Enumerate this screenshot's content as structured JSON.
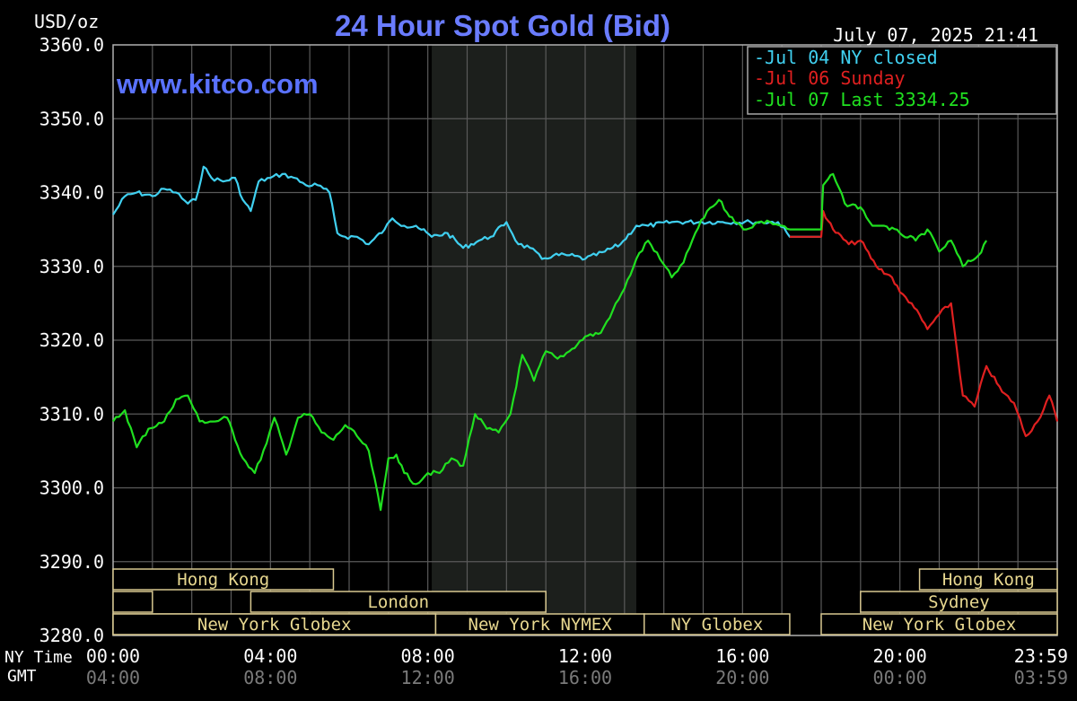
{
  "chart_data": {
    "type": "line",
    "title": "24 Hour Spot Gold (Bid)",
    "unit_label": "USD/oz",
    "website": "www.kitco.com",
    "timestamp": "July 07, 2025 21:41",
    "ylim": [
      3280,
      3360
    ],
    "y_ticks": [
      "3360.0",
      "3350.0",
      "3340.0",
      "3330.0",
      "3320.0",
      "3310.0",
      "3300.0",
      "3290.0",
      "3280.0"
    ],
    "x_ticks_ny": [
      "00:00",
      "04:00",
      "08:00",
      "12:00",
      "16:00",
      "20:00",
      "23:59"
    ],
    "x_ticks_gmt": [
      "04:00",
      "08:00",
      "12:00",
      "16:00",
      "20:00",
      "00:00",
      "03:59"
    ],
    "ny_time_label": "NY Time",
    "gmt_label": "GMT",
    "legend_position": "top-right",
    "legend": [
      {
        "label": "Jul 04 NY closed",
        "color": "#40d0f0"
      },
      {
        "label": "Jul 06 Sunday",
        "color": "#e02020"
      },
      {
        "label": "Jul 07 Last 3334.25",
        "color": "#20e020"
      }
    ],
    "shaded_period_hours": [
      8.1,
      13.3
    ],
    "grid": true,
    "markets": [
      {
        "label": "Hong Kong",
        "start": 0,
        "end": 5.6,
        "row": 0
      },
      {
        "label": "Hong Kong",
        "start": 20.5,
        "end": 24,
        "row": 0
      },
      {
        "label": "",
        "start": 0,
        "end": 1.0,
        "row": 1
      },
      {
        "label": "London",
        "start": 3.5,
        "end": 11.0,
        "row": 1
      },
      {
        "label": "Sydney",
        "start": 19.0,
        "end": 24,
        "row": 1
      },
      {
        "label": "",
        "start": 0,
        "end": 8.2,
        "row": 2
      },
      {
        "label": "New York Globex",
        "start": 0,
        "end": 8.2,
        "row": 2
      },
      {
        "label": "New York NYMEX",
        "start": 8.2,
        "end": 13.5,
        "row": 2
      },
      {
        "label": "NY Globex",
        "start": 13.5,
        "end": 17.2,
        "row": 2
      },
      {
        "label": "New York Globex",
        "start": 18.0,
        "end": 24,
        "row": 2
      }
    ],
    "series": [
      {
        "name": "Jul 04 NY closed",
        "color": "#40d0f0",
        "x": [
          0,
          0.3,
          0.6,
          1.0,
          1.3,
          1.6,
          1.9,
          2.1,
          2.3,
          2.5,
          2.8,
          3.1,
          3.3,
          3.5,
          3.7,
          4.0,
          4.3,
          4.6,
          4.9,
          5.2,
          5.5,
          5.7,
          5.9,
          6.2,
          6.5,
          6.9,
          7.1,
          7.4,
          7.7,
          8.1,
          8.5,
          8.9,
          9.3,
          9.6,
          10.0,
          10.3,
          10.6,
          10.9,
          11.2,
          11.6,
          12.0,
          12.5,
          12.9,
          13.3,
          13.6,
          14.2,
          14.9,
          15.5,
          16.2,
          16.9,
          17.2,
          18.0
        ],
        "y": [
          3337,
          3339.5,
          3340,
          3339.5,
          3340.5,
          3340,
          3338.5,
          3339,
          3343.5,
          3342,
          3341.5,
          3342,
          3339,
          3337.5,
          3341.5,
          3342,
          3342.5,
          3342,
          3341,
          3341,
          3340,
          3334.5,
          3334,
          3334,
          3333,
          3335,
          3336.5,
          3335.5,
          3335.5,
          3334,
          3334.5,
          3332.5,
          3333.5,
          3334,
          3336,
          3333,
          3332.5,
          3331,
          3331.5,
          3331.5,
          3331,
          3332,
          3333,
          3335.5,
          3335.5,
          3336,
          3336,
          3336,
          3336,
          3336,
          3334,
          3334
        ]
      },
      {
        "name": "Jul 06 Sunday",
        "color": "#e02020",
        "x": [
          17.2,
          17.6,
          18.0,
          18.05,
          18.3,
          18.7,
          19.0,
          19.4,
          19.8,
          20.0,
          20.3,
          20.7,
          21.0,
          21.3,
          21.6,
          21.9,
          22.2,
          22.6,
          22.9,
          23.2,
          23.5,
          23.8,
          24
        ],
        "y": [
          3334,
          3334,
          3334,
          3337.5,
          3335,
          3333,
          3333.5,
          3330,
          3328.5,
          3326.5,
          3325,
          3321.5,
          3323.5,
          3325,
          3312.5,
          3311,
          3316.5,
          3313,
          3311.5,
          3307,
          3309,
          3312.5,
          3309
        ]
      },
      {
        "name": "Jul 07 Last 3334.25",
        "color": "#20e020",
        "x": [
          0,
          0.3,
          0.6,
          0.9,
          1.3,
          1.6,
          1.9,
          2.2,
          2.6,
          2.9,
          3.3,
          3.6,
          3.9,
          4.1,
          4.4,
          4.7,
          5.0,
          5.3,
          5.6,
          5.9,
          6.2,
          6.5,
          6.8,
          7.0,
          7.2,
          7.4,
          7.7,
          8.0,
          8.3,
          8.6,
          8.9,
          9.2,
          9.5,
          9.8,
          10.1,
          10.4,
          10.7,
          11.0,
          11.3,
          11.6,
          12.0,
          12.4,
          12.7,
          13.0,
          13.3,
          13.6,
          13.9,
          14.2,
          14.5,
          14.8,
          15.1,
          15.4,
          15.8,
          16.1,
          16.4,
          16.7,
          17.0,
          17.2,
          17.6,
          18.0,
          18.05,
          18.3,
          18.6,
          19.0,
          19.3,
          19.6,
          20.0,
          20.4,
          20.7,
          21.0,
          21.3,
          21.6,
          22.0,
          22.2
        ],
        "y": [
          3309,
          3310.5,
          3305.5,
          3308,
          3309,
          3312,
          3312.5,
          3309,
          3309,
          3309.5,
          3304,
          3302,
          3306,
          3309.5,
          3304.5,
          3309.5,
          3310,
          3307.5,
          3306.5,
          3308.5,
          3307,
          3305,
          3297,
          3304,
          3304.5,
          3302,
          3300.5,
          3302,
          3302,
          3304,
          3303,
          3310,
          3308,
          3307.5,
          3310,
          3318,
          3314.5,
          3318.5,
          3317.5,
          3318.5,
          3320.5,
          3321,
          3324,
          3327,
          3331,
          3333.5,
          3331,
          3328.5,
          3330.5,
          3334.5,
          3337.5,
          3339,
          3336,
          3335,
          3336,
          3336,
          3335.5,
          3335,
          3335,
          3335,
          3341,
          3342.5,
          3338.5,
          3338,
          3335.5,
          3335.5,
          3334.5,
          3333.5,
          3335,
          3332,
          3333.5,
          3330,
          3331.5,
          3333.5
        ]
      }
    ]
  }
}
